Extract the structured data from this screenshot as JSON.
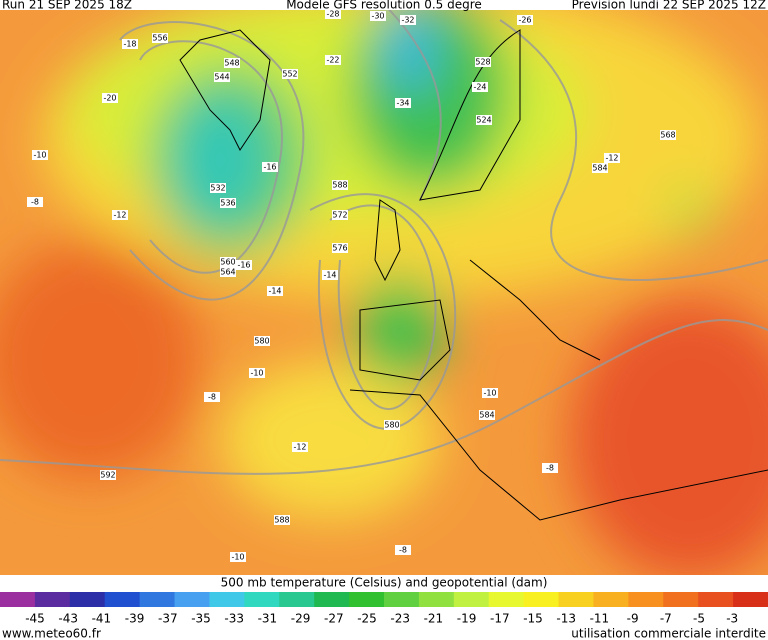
{
  "header": {
    "run": "Run 21 SEP 2025 18Z",
    "model": "Modele GFS resolution 0.5 degre",
    "forecast": "Prevision lundi 22 SEP 2025 12Z"
  },
  "map": {
    "contour_labels": [
      "-28",
      "-30",
      "-32",
      "-26",
      "-24",
      "-14",
      "-16",
      "-18",
      "-12",
      "-10",
      "-8",
      "556",
      "548",
      "544",
      "552",
      "528",
      "524",
      "-22",
      "-34",
      "532",
      "536",
      "560",
      "564",
      "-20",
      "572",
      "576",
      "580",
      "584",
      "588",
      "592",
      "568",
      "-12",
      "-10",
      "-8",
      "-14",
      "-16",
      "-12",
      "-10",
      "-8",
      "580",
      "584",
      "588",
      "-10",
      "-8"
    ]
  },
  "legend": {
    "title": "500 mb temperature (Celsius) and geopotential (dam)",
    "ticks": [
      -45,
      -43,
      -41,
      -39,
      -37,
      -35,
      -33,
      -31,
      -29,
      -27,
      -25,
      -23,
      -21,
      -19,
      -17,
      -15,
      -13,
      -11,
      -9,
      -7,
      -5,
      -3
    ],
    "colors": [
      "#9b2fa0",
      "#5b2ca0",
      "#2c2ea8",
      "#2050d0",
      "#3078e0",
      "#48a0f0",
      "#40c8e8",
      "#30d8c0",
      "#28c890",
      "#20b850",
      "#30c030",
      "#60d040",
      "#90e040",
      "#c0f040",
      "#e8f830",
      "#f8f020",
      "#f8d020",
      "#f8b020",
      "#f89020",
      "#f07020",
      "#e85020",
      "#d83018"
    ]
  },
  "footer": {
    "site": "www.meteo60.fr",
    "notice": "utilisation commerciale interdite"
  }
}
